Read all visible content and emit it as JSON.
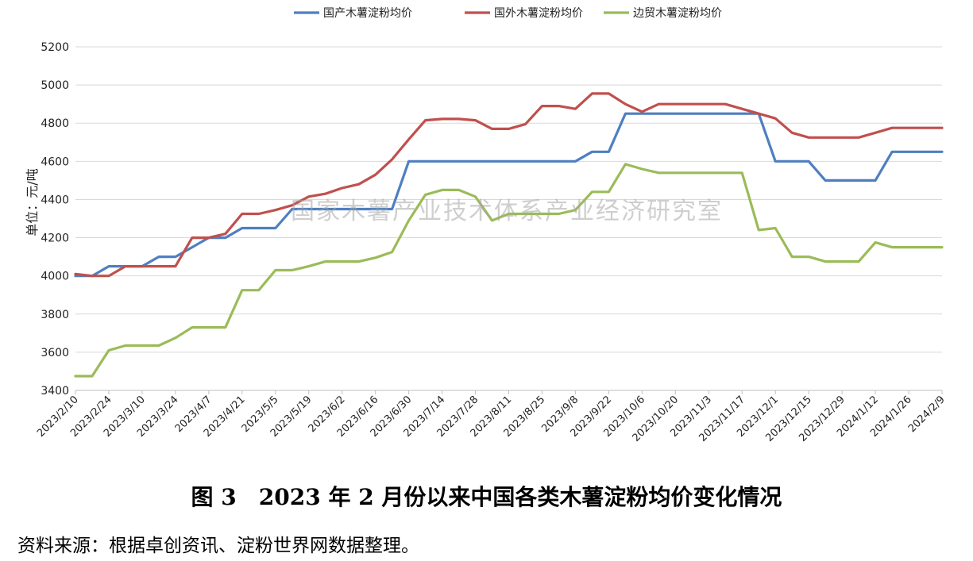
{
  "chart_data": {
    "type": "line",
    "ylabel": "单位：元/吨",
    "ylim": [
      3400,
      5200
    ],
    "ytick_step": 200,
    "grid": true,
    "legend_position": "top",
    "watermark": "国家木薯产业技术体系产业经济研究室",
    "x_tick_labels": [
      "2023/2/10",
      "2023/2/24",
      "2023/3/10",
      "2023/3/24",
      "2023/4/7",
      "2023/4/21",
      "2023/5/5",
      "2023/5/19",
      "2023/6/2",
      "2023/6/16",
      "2023/6/30",
      "2023/7/14",
      "2023/7/28",
      "2023/8/11",
      "2023/8/25",
      "2023/9/8",
      "2023/9/22",
      "2023/10/6",
      "2023/10/20",
      "2023/11/3",
      "2023/11/17",
      "2023/12/1",
      "2023/12/15",
      "2023/12/29",
      "2024/1/12",
      "2024/1/26",
      "2024/2/9"
    ],
    "x": [
      "2023/2/10",
      "2023/2/17",
      "2023/2/24",
      "2023/3/3",
      "2023/3/10",
      "2023/3/17",
      "2023/3/24",
      "2023/3/31",
      "2023/4/7",
      "2023/4/14",
      "2023/4/21",
      "2023/4/28",
      "2023/5/5",
      "2023/5/12",
      "2023/5/19",
      "2023/5/26",
      "2023/6/2",
      "2023/6/9",
      "2023/6/16",
      "2023/6/23",
      "2023/6/30",
      "2023/7/7",
      "2023/7/14",
      "2023/7/21",
      "2023/7/28",
      "2023/8/4",
      "2023/8/11",
      "2023/8/18",
      "2023/8/25",
      "2023/9/1",
      "2023/9/8",
      "2023/9/15",
      "2023/9/22",
      "2023/9/29",
      "2023/10/6",
      "2023/10/13",
      "2023/10/20",
      "2023/10/27",
      "2023/11/3",
      "2023/11/10",
      "2023/11/17",
      "2023/11/24",
      "2023/12/1",
      "2023/12/8",
      "2023/12/15",
      "2023/12/22",
      "2023/12/29",
      "2024/1/5",
      "2024/1/12",
      "2024/1/19",
      "2024/1/26",
      "2024/2/2",
      "2024/2/9"
    ],
    "series": [
      {
        "name": "国产木薯淀粉均价",
        "color": "#4f7fbf",
        "values": [
          4000,
          4000,
          4050,
          4050,
          4050,
          4100,
          4100,
          4150,
          4200,
          4200,
          4250,
          4250,
          4250,
          4350,
          4350,
          4350,
          4350,
          4350,
          4350,
          4350,
          4600,
          4600,
          4600,
          4600,
          4600,
          4600,
          4600,
          4600,
          4600,
          4600,
          4600,
          4650,
          4650,
          4850,
          4850,
          4850,
          4850,
          4850,
          4850,
          4850,
          4850,
          4850,
          4600,
          4600,
          4600,
          4500,
          4500,
          4500,
          4500,
          4650,
          4650,
          4650,
          4650
        ]
      },
      {
        "name": "国外木薯淀粉均价",
        "color": "#c0504d",
        "values": [
          4010,
          4000,
          4000,
          4050,
          4050,
          4050,
          4050,
          4200,
          4200,
          4220,
          4325,
          4325,
          4345,
          4370,
          4415,
          4430,
          4460,
          4480,
          4530,
          4610,
          4715,
          4815,
          4822,
          4822,
          4815,
          4770,
          4770,
          4795,
          4890,
          4890,
          4875,
          4955,
          4955,
          4900,
          4860,
          4900,
          4900,
          4900,
          4900,
          4900,
          4875,
          4850,
          4825,
          4750,
          4725,
          4725,
          4725,
          4725,
          4750,
          4775,
          4775,
          4775,
          4775
        ]
      },
      {
        "name": "边贸木薯淀粉均价",
        "color": "#9bbb59",
        "values": [
          3475,
          3475,
          3610,
          3635,
          3635,
          3635,
          3675,
          3730,
          3730,
          3730,
          3925,
          3925,
          4030,
          4030,
          4050,
          4075,
          4075,
          4075,
          4095,
          4125,
          4290,
          4425,
          4450,
          4450,
          4415,
          4290,
          4325,
          4325,
          4325,
          4325,
          4345,
          4440,
          4440,
          4585,
          4560,
          4540,
          4540,
          4540,
          4540,
          4540,
          4540,
          4240,
          4250,
          4100,
          4100,
          4075,
          4075,
          4075,
          4175,
          4150,
          4150,
          4150,
          4150
        ]
      }
    ]
  },
  "caption": "图 3　2023 年 2 月份以来中国各类木薯淀粉均价变化情况",
  "source": "资料来源：根据卓创资讯、淀粉世界网数据整理。"
}
